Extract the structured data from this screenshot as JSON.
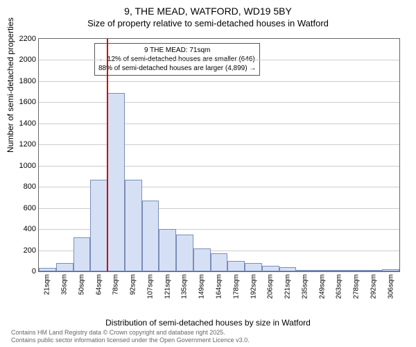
{
  "title": "9, THE MEAD, WATFORD, WD19 5BY",
  "subtitle": "Size of property relative to semi-detached houses in Watford",
  "ylabel": "Number of semi-detached properties",
  "xlabel": "Distribution of semi-detached houses by size in Watford",
  "annotation_title": "9 THE MEAD: 71sqm",
  "annotation_line1": "← 12% of semi-detached houses are smaller (646)",
  "annotation_line2": "88% of semi-detached houses are larger (4,899) →",
  "footer_line1": "Contains HM Land Registry data © Crown copyright and database right 2025.",
  "footer_line2": "Contains public sector information licensed under the Open Government Licence v3.0.",
  "chart": {
    "type": "histogram",
    "ylim": [
      0,
      2200
    ],
    "ytick_step": 200,
    "bar_color": "#d6e0f5",
    "bar_border_color": "#7a8db8",
    "reference_value": 71,
    "reference_color": "#cc0000",
    "grid_color": "#cccccc",
    "background_color": "#ffffff",
    "x_categories": [
      "21sqm",
      "35sqm",
      "50sqm",
      "64sqm",
      "78sqm",
      "92sqm",
      "107sqm",
      "121sqm",
      "135sqm",
      "149sqm",
      "164sqm",
      "178sqm",
      "192sqm",
      "206sqm",
      "221sqm",
      "235sqm",
      "249sqm",
      "263sqm",
      "278sqm",
      "292sqm",
      "306sqm"
    ],
    "values": [
      30,
      80,
      320,
      870,
      1690,
      870,
      670,
      400,
      350,
      220,
      170,
      100,
      80,
      50,
      40,
      15,
      8,
      5,
      4,
      3,
      18
    ],
    "title_fontsize": 14,
    "label_fontsize": 12,
    "tick_fontsize": 11
  }
}
